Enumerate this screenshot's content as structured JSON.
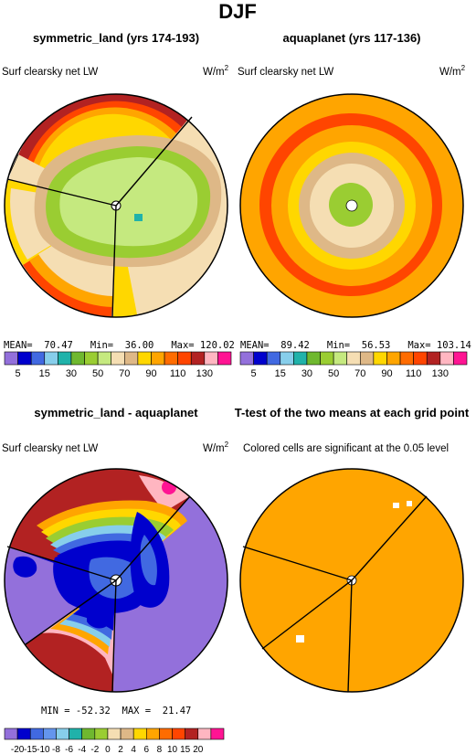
{
  "figure": {
    "title": "DJF",
    "panel_titles": [
      "symmetric_land (yrs 174-193)",
      "aquaplanet (yrs 117-136)",
      "symmetric_land - aquaplanet",
      "T-test of the two means at each grid point"
    ],
    "variable_label": "Surf clearsky net LW",
    "units_base": "W/m",
    "units_exp": "2",
    "ttest_note": "Colored cells are significant at the 0.05 level"
  },
  "stats": {
    "p1": "MEAN=  70.47   Min=  36.00   Max= 120.02",
    "p2": "MEAN=  89.42   Min=  56.53   Max= 103.14",
    "p3": "MIN = -52.32  MAX =  21.47"
  },
  "colors": {
    "main_scale": [
      "#9370db",
      "#0000cd",
      "#4169e1",
      "#87ceeb",
      "#20b2aa",
      "#6fb82f",
      "#9acd32",
      "#c5e97f",
      "#f5deb3",
      "#deb887",
      "#ffd700",
      "#ffa500",
      "#ff6c00",
      "#ff4500",
      "#b22222",
      "#ffb6c1",
      "#ff1493"
    ],
    "diff_scale": [
      "#9370db",
      "#0000cd",
      "#4169e1",
      "#6495ed",
      "#87ceeb",
      "#20b2aa",
      "#6fb82f",
      "#9acd32",
      "#f5deb3",
      "#deb887",
      "#ffd700",
      "#ffa500",
      "#ff6c00",
      "#ff4500",
      "#b22222",
      "#ffb6c1",
      "#ff1493"
    ],
    "ttest_fill": "#ffa500"
  },
  "chart_data": [
    {
      "type": "heatmap",
      "title": "symmetric_land (yrs 174-193)",
      "label": "Surf clearsky net LW",
      "mean": 70.47,
      "min": 36.0,
      "max": 120.02,
      "colorbar_labels": [
        "5",
        "15",
        "30",
        "50",
        "70",
        "90",
        "110",
        "130"
      ]
    },
    {
      "type": "heatmap",
      "title": "aquaplanet (yrs 117-136)",
      "label": "Surf clearsky net LW",
      "mean": 89.42,
      "min": 56.53,
      "max": 103.14,
      "colorbar_labels": [
        "5",
        "15",
        "30",
        "50",
        "70",
        "90",
        "110",
        "130"
      ]
    },
    {
      "type": "heatmap",
      "title": "symmetric_land - aquaplanet",
      "label": "Surf clearsky net LW",
      "min": -52.32,
      "max": 21.47,
      "colorbar_labels": [
        "-20",
        "-15",
        "-10",
        "-8",
        "-6",
        "-4",
        "-2",
        "0",
        "2",
        "4",
        "6",
        "8",
        "10",
        "15",
        "20"
      ]
    },
    {
      "type": "heatmap",
      "title": "T-test of the two means at each grid point",
      "note": "Colored cells are significant at the 0.05 level"
    }
  ]
}
